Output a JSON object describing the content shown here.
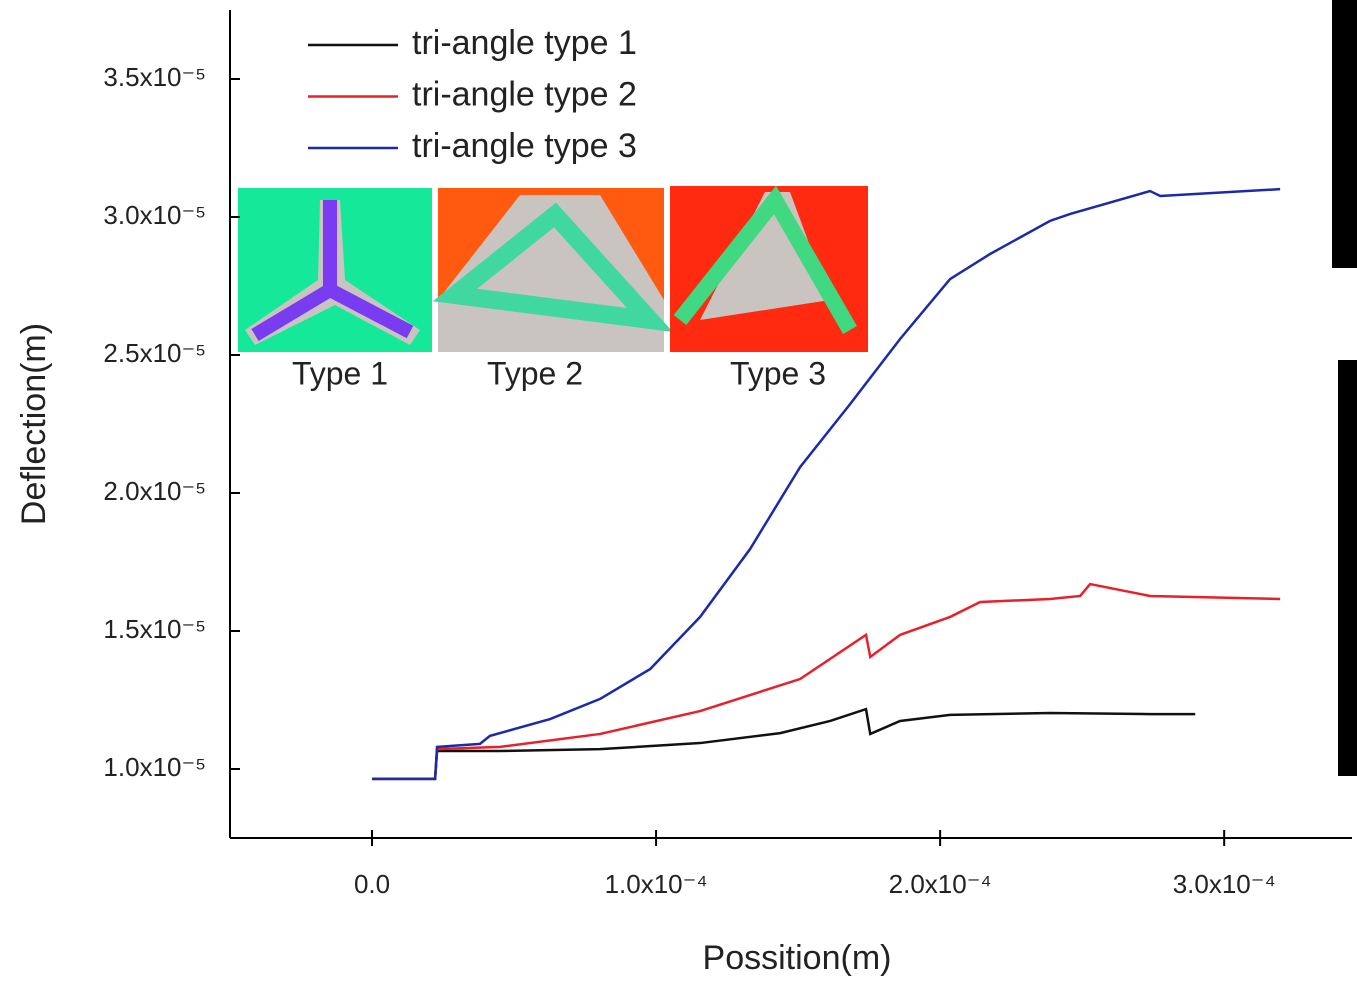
{
  "chart_data": {
    "type": "line",
    "x_label": "Possition(m)",
    "y_label": "Deflection(m)",
    "xlim": [
      -5e-05,
      0.000345
    ],
    "ylim": [
      7.5e-06,
      3.75e-05
    ],
    "xticks": [
      {
        "value": 0,
        "label": "0.0"
      },
      {
        "value": 0.0001,
        "label": "1.0x10⁻⁴"
      },
      {
        "value": 0.0002,
        "label": "2.0x10⁻⁴"
      },
      {
        "value": 0.0003,
        "label": "3.0x10⁻⁴"
      }
    ],
    "yticks": [
      {
        "value": 1e-05,
        "label": "1.0x10⁻⁵"
      },
      {
        "value": 1.5e-05,
        "label": "1.5x10⁻⁵"
      },
      {
        "value": 2e-05,
        "label": "2.0x10⁻⁵"
      },
      {
        "value": 2.5e-05,
        "label": "2.5x10⁻⁵"
      },
      {
        "value": 3e-05,
        "label": "3.0x10⁻⁵"
      },
      {
        "value": 3.5e-05,
        "label": "3.5x10⁻⁵"
      }
    ],
    "legend": "upper left",
    "inset_labels": [
      "Type 1",
      "Type 2",
      "Type 3"
    ],
    "series": [
      {
        "name": "tri-angle type 1",
        "color": "#111111",
        "x": [
          0,
          2.22e-05,
          2.29e-05,
          4.51e-05,
          8.03e-05,
          0.0001155,
          0.0001437,
          0.0001613,
          0.0001739,
          0.0001754,
          0.0001859,
          0.0002035,
          0.0002387,
          0.0002739,
          0.0002898
        ],
        "values": [
          9.64e-06,
          9.64e-06,
          1.065e-05,
          1.065e-05,
          1.072e-05,
          1.094e-05,
          1.13e-05,
          1.174e-05,
          1.217e-05,
          1.127e-05,
          1.174e-05,
          1.196e-05,
          1.203e-05,
          1.199e-05,
          1.199e-05
        ]
      },
      {
        "name": "tri-angle type 2",
        "color": "#e8202a",
        "x": [
          0,
          2.22e-05,
          2.29e-05,
          4.51e-05,
          8.03e-05,
          0.0001155,
          0.0001507,
          0.0001739,
          0.0001754,
          0.0001859,
          0.0002035,
          0.0002141,
          0.0002387,
          0.0002493,
          0.0002528,
          0.0002739,
          0.0003197
        ],
        "values": [
          9.64e-06,
          9.64e-06,
          1.072e-05,
          1.08e-05,
          1.127e-05,
          1.21e-05,
          1.326e-05,
          1.486e-05,
          1.406e-05,
          1.486e-05,
          1.551e-05,
          1.605e-05,
          1.616e-05,
          1.627e-05,
          1.67e-05,
          1.627e-05,
          1.616e-05
        ]
      },
      {
        "name": "tri-angle type 3",
        "color": "#1a2aa8",
        "x": [
          0,
          2.22e-05,
          2.29e-05,
          3.8e-05,
          4.15e-05,
          6.27e-05,
          8.03e-05,
          9.79e-05,
          0.0001155,
          0.0001331,
          0.0001507,
          0.0001683,
          0.0001859,
          0.0002035,
          0.0002176,
          0.0002387,
          0.0002458,
          0.0002739,
          0.0002775,
          0.0003197
        ],
        "values": [
          9.64e-06,
          9.64e-06,
          1.08e-05,
          1.091e-05,
          1.12e-05,
          1.181e-05,
          1.254e-05,
          1.362e-05,
          1.551e-05,
          1.797e-05,
          2.094e-05,
          2.322e-05,
          2.558e-05,
          2.775e-05,
          2.866e-05,
          2.986e-05,
          3.011e-05,
          3.094e-05,
          3.076e-05,
          3.101e-05
        ]
      }
    ]
  }
}
